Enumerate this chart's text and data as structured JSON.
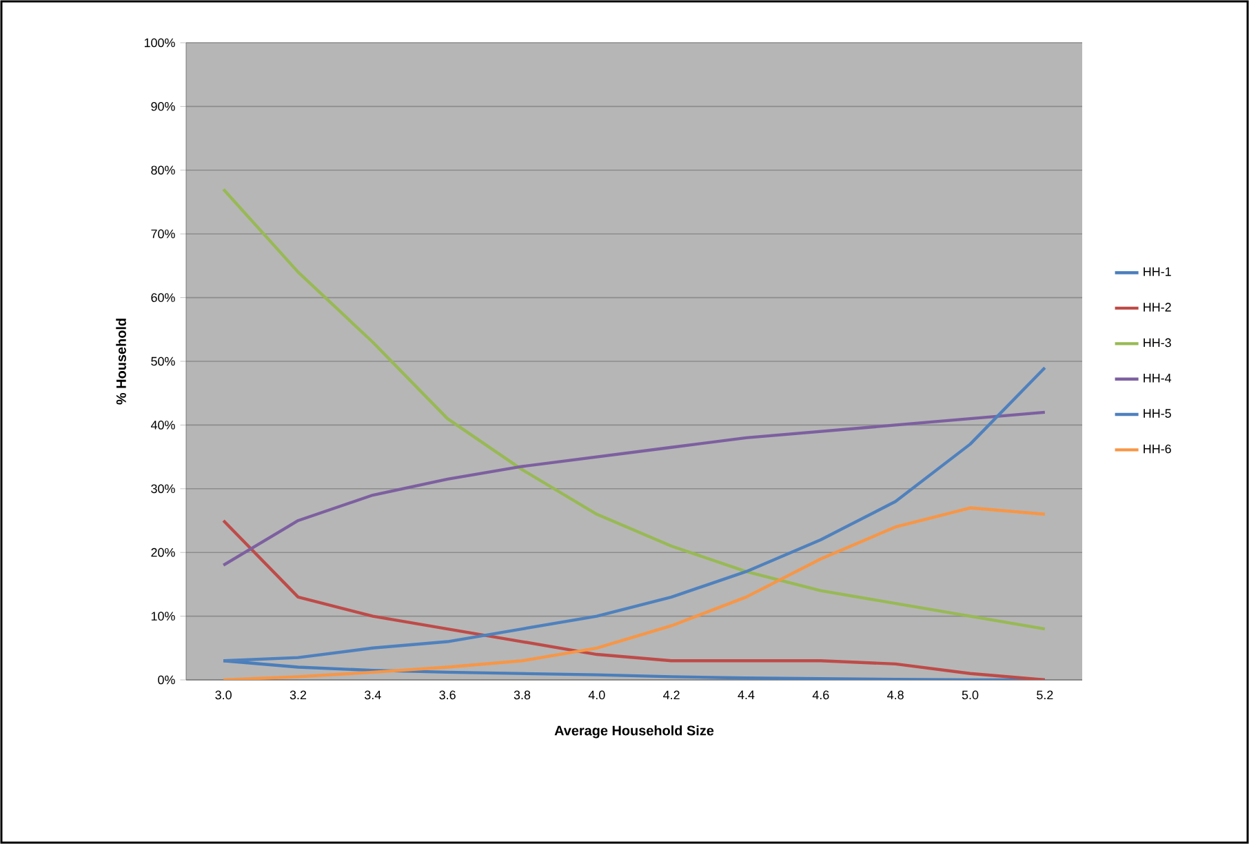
{
  "chart_data": {
    "type": "line",
    "xlabel": "Average Household Size",
    "ylabel": "% Household",
    "categories": [
      "3.0",
      "3.2",
      "3.4",
      "3.6",
      "3.8",
      "4.0",
      "4.2",
      "4.4",
      "4.6",
      "4.8",
      "5.0",
      "5.2"
    ],
    "series": [
      {
        "name": "HH-1",
        "color": "#4a7ebb",
        "values": [
          3,
          2,
          1.5,
          1.2,
          1,
          0.8,
          0.5,
          0.3,
          0.2,
          0.1,
          0,
          0
        ]
      },
      {
        "name": "HH-2",
        "color": "#be4b48",
        "values": [
          25,
          13,
          10,
          8,
          6,
          4,
          3,
          3,
          3,
          2.5,
          1,
          0
        ]
      },
      {
        "name": "HH-3",
        "color": "#98b954",
        "values": [
          77,
          64,
          53,
          41,
          33,
          26,
          21,
          17,
          14,
          12,
          10,
          8
        ]
      },
      {
        "name": "HH-4",
        "color": "#7d60a0",
        "values": [
          18,
          25,
          29,
          31.5,
          33.5,
          35,
          36.5,
          38,
          39,
          40,
          41,
          42
        ]
      },
      {
        "name": "HH-5",
        "color": "#4f81bd",
        "values": [
          3,
          3.5,
          5,
          6,
          8,
          10,
          13,
          17,
          22,
          28,
          37,
          49
        ]
      },
      {
        "name": "HH-6",
        "color": "#f79646",
        "values": [
          0,
          0.5,
          1.2,
          2,
          3,
          5,
          8.5,
          13,
          19,
          24,
          27,
          26
        ]
      }
    ],
    "ylim": [
      0,
      100
    ],
    "yticks": [
      {
        "value": 0,
        "label": "0%"
      },
      {
        "value": 10,
        "label": "10%"
      },
      {
        "value": 20,
        "label": "20%"
      },
      {
        "value": 30,
        "label": "30%"
      },
      {
        "value": 40,
        "label": "40%"
      },
      {
        "value": 50,
        "label": "50%"
      },
      {
        "value": 60,
        "label": "60%"
      },
      {
        "value": 70,
        "label": "70%"
      },
      {
        "value": 80,
        "label": "80%"
      },
      {
        "value": 90,
        "label": "90%"
      },
      {
        "value": 100,
        "label": "100%"
      }
    ],
    "grid": "y",
    "legend": "right",
    "marker": "none",
    "line_style": "solid"
  }
}
